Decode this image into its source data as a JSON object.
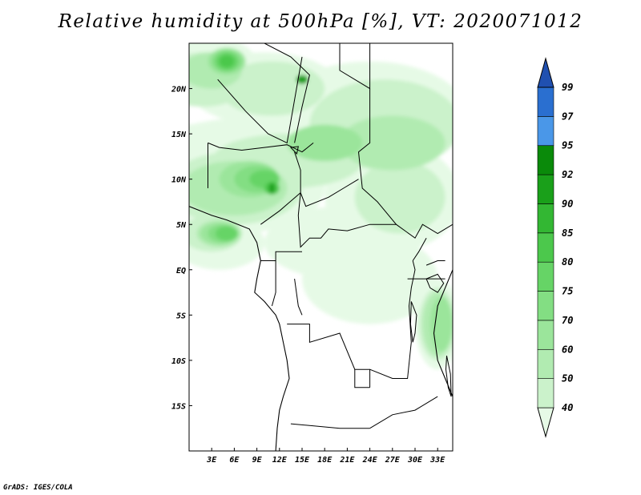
{
  "title": "Relative humidity at 500hPa [%], VT: 2020071012",
  "credit": "GrADS: IGES/COLA",
  "map": {
    "lon_range": [
      0,
      35
    ],
    "lat_range": [
      -20,
      25
    ],
    "lon_ticks": [
      {
        "value": 3,
        "label": "3E"
      },
      {
        "value": 6,
        "label": "6E"
      },
      {
        "value": 9,
        "label": "9E"
      },
      {
        "value": 12,
        "label": "12E"
      },
      {
        "value": 15,
        "label": "15E"
      },
      {
        "value": 18,
        "label": "18E"
      },
      {
        "value": 21,
        "label": "21E"
      },
      {
        "value": 24,
        "label": "24E"
      },
      {
        "value": 27,
        "label": "27E"
      },
      {
        "value": 30,
        "label": "30E"
      },
      {
        "value": 33,
        "label": "33E"
      }
    ],
    "lat_ticks": [
      {
        "value": 20,
        "label": "20N"
      },
      {
        "value": 15,
        "label": "15N"
      },
      {
        "value": 10,
        "label": "10N"
      },
      {
        "value": 5,
        "label": "5N"
      },
      {
        "value": 0,
        "label": "EQ"
      },
      {
        "value": -5,
        "label": "5S"
      },
      {
        "value": -10,
        "label": "10S"
      },
      {
        "value": -15,
        "label": "15S"
      }
    ]
  },
  "colorbar": {
    "levels": [
      "40",
      "50",
      "60",
      "70",
      "75",
      "80",
      "85",
      "90",
      "92",
      "95",
      "97",
      "99"
    ],
    "colors": [
      "#e6fae6",
      "#cbf2cb",
      "#b1ebb1",
      "#9be59b",
      "#83de83",
      "#66d466",
      "#4cc84c",
      "#33b733",
      "#1aa01a",
      "#0a8a0a",
      "#4a97e8",
      "#2a6fd0",
      "#2050b0"
    ]
  },
  "fields": [
    {
      "level": "40",
      "blobs": [
        [
          1.5,
          22,
          8,
          4
        ],
        [
          10,
          20,
          10,
          4
        ],
        [
          24,
          17,
          13,
          6
        ],
        [
          12,
          13,
          18,
          4
        ],
        [
          6,
          9,
          12,
          5
        ],
        [
          27,
          8,
          9,
          6
        ],
        [
          20,
          3,
          10,
          4
        ],
        [
          24,
          -1,
          9,
          5
        ],
        [
          4,
          3,
          6,
          3
        ],
        [
          33,
          -6,
          3,
          5
        ]
      ]
    },
    {
      "level": "50",
      "blobs": [
        [
          2,
          21,
          6,
          3
        ],
        [
          11,
          20,
          7,
          3
        ],
        [
          26,
          16,
          10,
          5
        ],
        [
          6,
          9,
          9,
          4
        ],
        [
          13,
          12,
          10,
          3
        ],
        [
          28,
          8,
          6,
          4
        ],
        [
          3,
          4,
          4,
          2
        ],
        [
          33,
          -6,
          2.5,
          4
        ]
      ]
    },
    {
      "level": "60",
      "blobs": [
        [
          3,
          22,
          4,
          2
        ],
        [
          6,
          9,
          7,
          3
        ],
        [
          27,
          14,
          7,
          3
        ],
        [
          4,
          4,
          3,
          1.5
        ],
        [
          33,
          -6,
          2,
          3.5
        ]
      ]
    },
    {
      "level": "70",
      "blobs": [
        [
          5,
          23,
          2.5,
          1.5
        ],
        [
          8,
          10,
          4,
          2
        ],
        [
          18,
          14,
          5,
          2
        ],
        [
          4,
          4,
          2.5,
          1.2
        ],
        [
          33.5,
          -6,
          1.5,
          3
        ]
      ]
    },
    {
      "level": "75",
      "blobs": [
        [
          5,
          23,
          2,
          1.2
        ],
        [
          9,
          10,
          3,
          1.5
        ],
        [
          4.5,
          4,
          2,
          1
        ]
      ]
    },
    {
      "level": "80",
      "blobs": [
        [
          5,
          23,
          1.5,
          1
        ],
        [
          10,
          10,
          2,
          1
        ],
        [
          5,
          4,
          1.5,
          0.8
        ]
      ]
    },
    {
      "level": "85",
      "blobs": [
        [
          5,
          23,
          1,
          0.7
        ],
        [
          11,
          9,
          1,
          0.7
        ]
      ]
    },
    {
      "level": "92",
      "blobs": [
        [
          15,
          21,
          0.8,
          0.5
        ],
        [
          11,
          9,
          0.4,
          0.6
        ]
      ]
    }
  ],
  "borders": {
    "coast": [
      [
        [
          0,
          7
        ],
        [
          3,
          6
        ],
        [
          5,
          5.5
        ],
        [
          8,
          4.5
        ],
        [
          9,
          3
        ],
        [
          9.5,
          1
        ],
        [
          9,
          -1
        ],
        [
          8.7,
          -2.5
        ],
        [
          10,
          -3.5
        ],
        [
          11.5,
          -5
        ],
        [
          12,
          -6
        ],
        [
          12.5,
          -8
        ],
        [
          13,
          -10
        ],
        [
          13.3,
          -12
        ],
        [
          12.5,
          -14
        ],
        [
          12,
          -15.5
        ],
        [
          11.7,
          -17.5
        ],
        [
          11.5,
          -20
        ]
      ],
      [
        [
          35,
          0
        ],
        [
          34,
          -2
        ],
        [
          33,
          -4
        ],
        [
          32.5,
          -7
        ],
        [
          33,
          -10
        ],
        [
          34,
          -12
        ],
        [
          35,
          -14
        ]
      ]
    ],
    "land": [
      [
        [
          2.5,
          14
        ],
        [
          4,
          13.5
        ],
        [
          7,
          13.2
        ],
        [
          10,
          13.5
        ],
        [
          13,
          13.8
        ],
        [
          15,
          13
        ],
        [
          16.5,
          14
        ]
      ],
      [
        [
          2.5,
          14
        ],
        [
          2.5,
          9
        ]
      ],
      [
        [
          3.8,
          21
        ],
        [
          7.5,
          17.5
        ],
        [
          10.5,
          15
        ],
        [
          13,
          14
        ],
        [
          15,
          23.5
        ]
      ],
      [
        [
          10,
          25
        ],
        [
          13.5,
          23.5
        ],
        [
          16,
          21.5
        ],
        [
          15,
          18
        ],
        [
          14,
          14
        ]
      ],
      [
        [
          20,
          25
        ],
        [
          20,
          22
        ],
        [
          24,
          20
        ],
        [
          24,
          25
        ]
      ],
      [
        [
          24,
          20
        ],
        [
          24,
          14
        ],
        [
          22.5,
          13
        ],
        [
          23,
          9
        ],
        [
          25,
          7.5
        ],
        [
          27.5,
          5
        ],
        [
          30,
          3.5
        ],
        [
          31,
          5
        ],
        [
          33,
          4
        ],
        [
          35,
          5
        ]
      ],
      [
        [
          14,
          13
        ],
        [
          14.8,
          11
        ],
        [
          14.8,
          8.5
        ],
        [
          15.5,
          7
        ],
        [
          18.5,
          8
        ],
        [
          20.5,
          9
        ],
        [
          22.5,
          10
        ]
      ],
      [
        [
          14.8,
          8.5
        ],
        [
          12,
          6.5
        ],
        [
          9.5,
          5
        ]
      ],
      [
        [
          14.8,
          8.5
        ],
        [
          14.5,
          6
        ],
        [
          14.8,
          2.5
        ],
        [
          16,
          3.5
        ],
        [
          17.5,
          3.5
        ],
        [
          18.5,
          4.5
        ],
        [
          21,
          4.3
        ],
        [
          24,
          5
        ],
        [
          27.5,
          5
        ]
      ],
      [
        [
          9.5,
          1
        ],
        [
          11.5,
          1
        ],
        [
          11.5,
          2
        ],
        [
          13,
          2
        ],
        [
          15,
          2
        ]
      ],
      [
        [
          11.5,
          1
        ],
        [
          11.5,
          -2.5
        ],
        [
          11,
          -4
        ]
      ],
      [
        [
          14,
          -1
        ],
        [
          14.5,
          -4
        ],
        [
          15,
          -5
        ]
      ],
      [
        [
          13,
          -6
        ],
        [
          16,
          -6
        ],
        [
          16,
          -8
        ],
        [
          20,
          -7
        ],
        [
          22,
          -11
        ],
        [
          24,
          -11
        ],
        [
          24,
          -13
        ]
      ],
      [
        [
          13.5,
          -17
        ],
        [
          20,
          -17.5
        ],
        [
          24,
          -17.5
        ]
      ],
      [
        [
          22,
          -11
        ],
        [
          22,
          -13
        ],
        [
          24,
          -13
        ]
      ],
      [
        [
          24,
          -11
        ],
        [
          27,
          -12
        ],
        [
          29,
          -12
        ],
        [
          29.5,
          -8
        ],
        [
          29.2,
          -4
        ],
        [
          29.5,
          -2
        ],
        [
          30,
          0
        ],
        [
          29.7,
          1
        ]
      ],
      [
        [
          29.7,
          1
        ],
        [
          30.5,
          2
        ],
        [
          31.5,
          3.5
        ]
      ],
      [
        [
          24,
          -17.5
        ],
        [
          27,
          -16
        ],
        [
          30,
          -15.5
        ],
        [
          33,
          -14
        ]
      ],
      [
        [
          29,
          -1
        ],
        [
          33,
          -1
        ],
        [
          34,
          -1
        ]
      ],
      [
        [
          31.5,
          0.5
        ],
        [
          33,
          1
        ],
        [
          34,
          1
        ]
      ]
    ]
  },
  "lakes": [
    [
      [
        31.5,
        -1
      ],
      [
        33,
        -0.5
      ],
      [
        33.8,
        -1.5
      ],
      [
        33,
        -2.5
      ],
      [
        32,
        -2
      ]
    ],
    [
      [
        29.5,
        -3.5
      ],
      [
        30.2,
        -5
      ],
      [
        30,
        -7
      ],
      [
        29.7,
        -8
      ],
      [
        29.4,
        -6
      ]
    ],
    [
      [
        34.2,
        -9.5
      ],
      [
        34.7,
        -11.5
      ],
      [
        34.8,
        -14
      ],
      [
        34.4,
        -13
      ],
      [
        34.1,
        -11
      ]
    ],
    [
      [
        13.5,
        13.5
      ],
      [
        14.5,
        13.6
      ],
      [
        14.3,
        12.8
      ]
    ]
  ]
}
